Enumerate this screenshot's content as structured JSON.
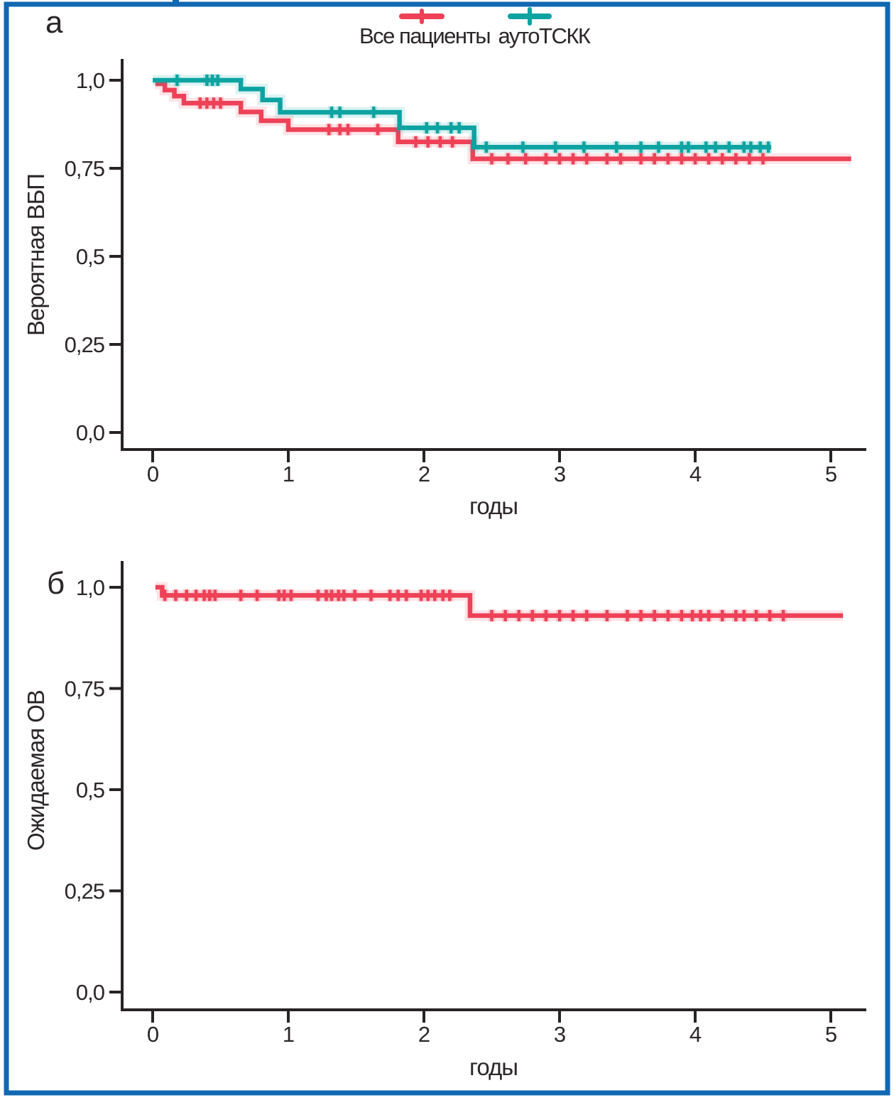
{
  "figure": {
    "border_color": "#1168b2",
    "background": "#ffffff",
    "axis_color": "#272324",
    "text_color": "#2b2627",
    "panels": [
      {
        "panel_label": "а"
      },
      {
        "panel_label": "б"
      }
    ],
    "legend": [
      {
        "label": "Все пациенты",
        "color": "#ee4157",
        "glyph": "censor-plus"
      },
      {
        "label": "аутоТСКК",
        "color": "#0ca3a1",
        "glyph": "censor-plus"
      }
    ]
  },
  "chart_data": [
    {
      "type": "line",
      "subtype": "kaplan_meier_step",
      "panel_label": "а",
      "title": "",
      "xlabel": "годы",
      "ylabel": "Вероятная ВБП",
      "xlim": [
        0,
        5.25
      ],
      "ylim": [
        0,
        1.0
      ],
      "grid": false,
      "legend_position": "top-center",
      "xticks": [
        0,
        1,
        2,
        3,
        4,
        5
      ],
      "xtick_labels": [
        "0",
        "1",
        "2",
        "3",
        "4",
        "5"
      ],
      "yticks": [
        0,
        0.25,
        0.5,
        0.75,
        1.0
      ],
      "ytick_labels": [
        "0,0",
        "0,25",
        "0,5",
        "0,75",
        "1,0"
      ],
      "series": [
        {
          "name": "Все пациенты",
          "color": "#ee4157",
          "steps": [
            [
              0.02,
              0.99
            ],
            [
              0.09,
              0.972
            ],
            [
              0.16,
              0.955
            ],
            [
              0.23,
              0.935
            ],
            [
              0.65,
              0.91
            ],
            [
              0.8,
              0.885
            ],
            [
              1.0,
              0.86
            ],
            [
              1.81,
              0.825
            ],
            [
              2.36,
              0.777
            ]
          ],
          "end_x": 5.15,
          "censor_x": [
            0.35,
            0.4,
            0.45,
            0.5,
            1.3,
            1.38,
            1.44,
            1.66,
            1.94,
            2.03,
            2.12,
            2.21,
            2.5,
            2.62,
            2.75,
            2.9,
            3.0,
            3.1,
            3.2,
            3.35,
            3.45,
            3.6,
            3.7,
            3.8,
            3.9,
            4.0,
            4.1,
            4.2,
            4.3,
            4.4,
            4.5
          ]
        },
        {
          "name": "аутоТСКК",
          "color": "#0ca3a1",
          "steps": [
            [
              0.0,
              1.0
            ],
            [
              0.65,
              0.975
            ],
            [
              0.81,
              0.944
            ],
            [
              0.94,
              0.909
            ],
            [
              1.82,
              0.865
            ],
            [
              2.37,
              0.81
            ]
          ],
          "end_x": 4.56,
          "censor_x": [
            0.18,
            0.4,
            0.44,
            0.48,
            1.32,
            1.38,
            1.63,
            2.02,
            2.1,
            2.2,
            2.26,
            2.46,
            2.73,
            2.97,
            3.18,
            3.42,
            3.6,
            3.73,
            3.9,
            3.95,
            4.08,
            4.15,
            4.25,
            4.36,
            4.41,
            4.48,
            4.54
          ]
        }
      ]
    },
    {
      "type": "line",
      "subtype": "kaplan_meier_step",
      "panel_label": "б",
      "title": "",
      "xlabel": "годы",
      "ylabel": "Ожидаемая ОВ",
      "xlim": [
        0,
        5.25
      ],
      "ylim": [
        0,
        1.0
      ],
      "grid": false,
      "legend_position": "none",
      "xticks": [
        0,
        1,
        2,
        3,
        4,
        5
      ],
      "xtick_labels": [
        "0",
        "1",
        "2",
        "3",
        "4",
        "5"
      ],
      "yticks": [
        0,
        0.25,
        0.5,
        0.75,
        1.0
      ],
      "ytick_labels": [
        "0,0",
        "0,25",
        "0,5",
        "0,75",
        "1,0"
      ],
      "series": [
        {
          "name": "Все пациенты",
          "color": "#ee4157",
          "steps": [
            [
              0.02,
              1.0
            ],
            [
              0.07,
              0.98
            ],
            [
              2.34,
              0.93
            ]
          ],
          "end_x": 5.09,
          "censor_x": [
            0.09,
            0.17,
            0.25,
            0.32,
            0.38,
            0.42,
            0.46,
            0.65,
            0.77,
            0.93,
            0.97,
            1.02,
            1.22,
            1.28,
            1.32,
            1.37,
            1.41,
            1.49,
            1.61,
            1.75,
            1.81,
            1.87,
            1.98,
            2.03,
            2.08,
            2.14,
            2.19,
            2.5,
            2.6,
            2.7,
            2.8,
            2.9,
            3.0,
            3.1,
            3.2,
            3.35,
            3.5,
            3.6,
            3.7,
            3.8,
            3.9,
            3.98,
            4.04,
            4.1,
            4.2,
            4.3,
            4.36,
            4.45,
            4.55,
            4.65
          ]
        }
      ]
    }
  ]
}
